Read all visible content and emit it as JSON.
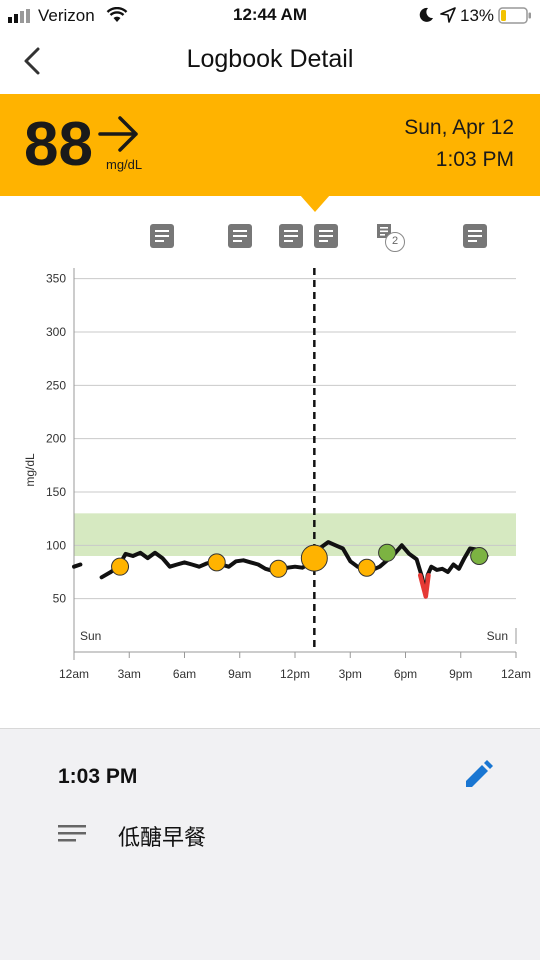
{
  "status_bar": {
    "carrier": "Verizon",
    "time": "12:44 AM",
    "battery": "13%"
  },
  "header": {
    "title": "Logbook Detail"
  },
  "reading": {
    "value": "88",
    "unit": "mg/dL",
    "trend": "steady",
    "date": "Sun, Apr 12",
    "time": "1:03 PM"
  },
  "colors": {
    "banner": "#ffb300",
    "target_range": "#d6e9c1",
    "low": "#e53935",
    "in_range_marker": "#7cb342",
    "event_marker": "#ffb300",
    "edit": "#1976d2"
  },
  "note_markers": [
    {
      "hour": 4.8,
      "count": ""
    },
    {
      "hour": 13.7,
      "count": ""
    },
    {
      "hour": 9.0,
      "count": ""
    },
    {
      "hour": 11.8,
      "count": ""
    },
    {
      "hour": 17.0,
      "count": "2"
    },
    {
      "hour": 21.8,
      "count": ""
    }
  ],
  "chart_data": {
    "type": "line",
    "ylabel": "mg/dL",
    "ylim": [
      0,
      360
    ],
    "yticks": [
      "350",
      "300",
      "250",
      "200",
      "150",
      "100",
      "50"
    ],
    "xticks": [
      "12am",
      "3am",
      "6am",
      "9am",
      "12pm",
      "3pm",
      "6pm",
      "9pm",
      "12am"
    ],
    "day_labels": {
      "start": "Sun",
      "end": "Sun"
    },
    "target_range": [
      90,
      130
    ],
    "selected_hour": 13.05,
    "series": [
      {
        "x": [
          0,
          0.35,
          null,
          1.5,
          2.0,
          2.4,
          2.8,
          3.2,
          3.6,
          4.0,
          4.4,
          4.8,
          5.2,
          5.6,
          6.0,
          6.4,
          6.8,
          7.2,
          7.6,
          8.0,
          8.4,
          8.8,
          9.2,
          9.6,
          10.0,
          10.4,
          10.8,
          11.2,
          11.6,
          12.0,
          12.4,
          12.8,
          13.05,
          13.4,
          13.8,
          14.2,
          14.6,
          15.0,
          15.4,
          15.8,
          16.2,
          16.6,
          17.0,
          17.4,
          17.8,
          18.2,
          18.6,
          18.9,
          19.1,
          19.2,
          19.4,
          19.7,
          20.0,
          20.3,
          20.6,
          20.9,
          21.2,
          21.5,
          21.9,
          22.4
        ],
        "y": [
          80,
          82,
          null,
          70,
          75,
          80,
          92,
          90,
          93,
          88,
          93,
          88,
          80,
          82,
          84,
          82,
          80,
          83,
          85,
          82,
          80,
          85,
          86,
          84,
          82,
          78,
          76,
          77,
          79,
          80,
          79,
          83,
          88,
          98,
          103,
          100,
          97,
          85,
          80,
          78,
          77,
          80,
          86,
          92,
          100,
          92,
          87,
          70,
          55,
          72,
          80,
          77,
          78,
          75,
          82,
          78,
          88,
          97,
          96,
          90
        ]
      }
    ],
    "markers": [
      {
        "x": 2.5,
        "y": 80,
        "kind": "event"
      },
      {
        "x": 7.75,
        "y": 84,
        "kind": "event"
      },
      {
        "x": 11.1,
        "y": 78,
        "kind": "event"
      },
      {
        "x": 13.05,
        "y": 88,
        "kind": "selected"
      },
      {
        "x": 15.9,
        "y": 79,
        "kind": "event"
      },
      {
        "x": 17.0,
        "y": 93,
        "kind": "in-range"
      },
      {
        "x": 22.0,
        "y": 90,
        "kind": "in-range"
      }
    ],
    "low_segment": {
      "x": [
        18.8,
        19.1,
        19.25
      ],
      "y": [
        72,
        52,
        72
      ]
    }
  },
  "detail": {
    "time": "1:03 PM",
    "note": "低醣早餐"
  }
}
